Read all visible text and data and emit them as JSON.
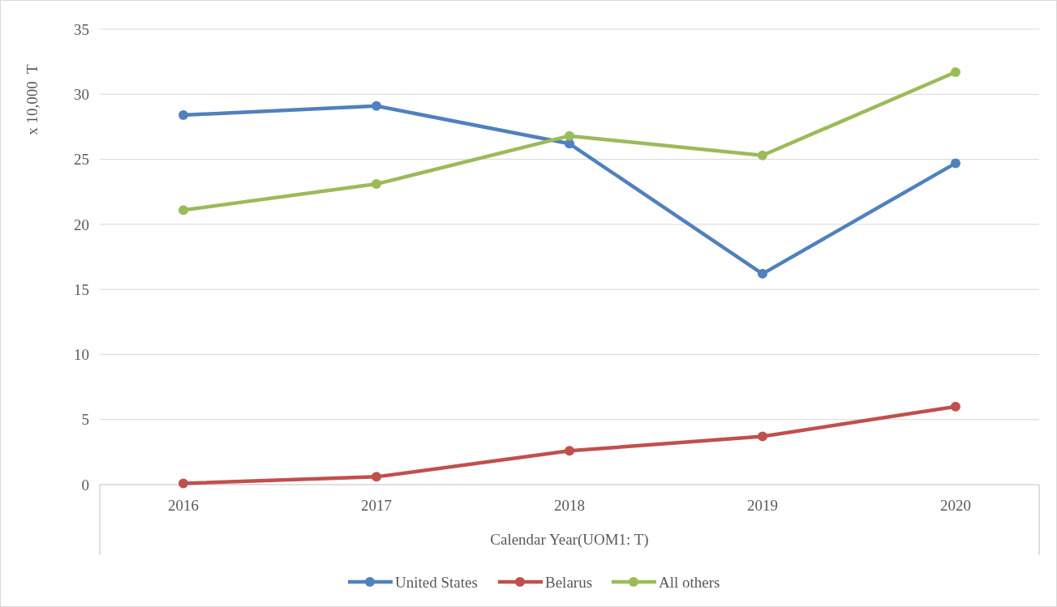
{
  "chart_data": {
    "type": "line",
    "xlabel": "Calendar Year(UOM1: T)",
    "ylabel": "x 10,000  T",
    "categories": [
      "2016",
      "2017",
      "2018",
      "2019",
      "2020"
    ],
    "series": [
      {
        "name": "United States",
        "color": "#4f81bd",
        "values": [
          28.4,
          29.1,
          26.2,
          16.2,
          24.7
        ]
      },
      {
        "name": "Belarus",
        "color": "#c0504d",
        "values": [
          0.1,
          0.6,
          2.6,
          3.7,
          6.0
        ]
      },
      {
        "name": "All others",
        "color": "#9bbb59",
        "values": [
          21.1,
          23.1,
          26.8,
          25.3,
          31.7
        ]
      }
    ],
    "ylim": [
      0,
      35
    ],
    "yticks": [
      0,
      5,
      10,
      15,
      20,
      25,
      30,
      35
    ],
    "grid": "y",
    "legend": "bottom",
    "marker": "circle",
    "line_style": "solid"
  }
}
